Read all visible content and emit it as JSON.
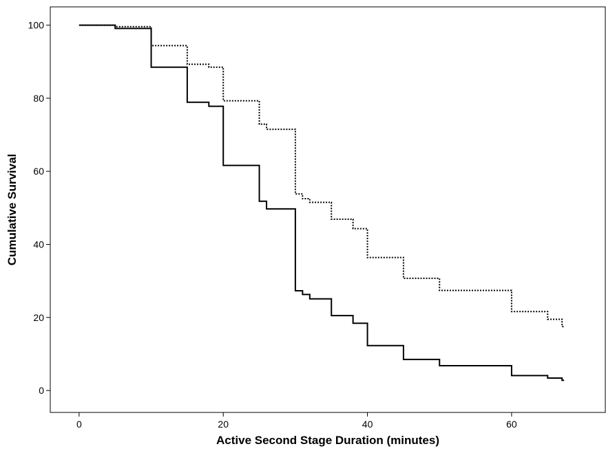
{
  "chart_data": {
    "type": "line",
    "title": "",
    "xlabel": "Active Second Stage Duration (minutes)",
    "ylabel": "Cumulative Survival",
    "xlim": [
      -4,
      73
    ],
    "ylim": [
      -6,
      105
    ],
    "xticks": [
      0,
      20,
      40,
      60
    ],
    "yticks": [
      0,
      20,
      40,
      60,
      80,
      100
    ],
    "xtick_labels": [
      "0",
      "20",
      "40",
      "60"
    ],
    "ytick_labels": [
      "0",
      "20",
      "40",
      "60",
      "80",
      "100"
    ],
    "grid": false,
    "legend": "none",
    "step": true,
    "series": [
      {
        "style": "solid",
        "color": "#000000",
        "x": [
          0,
          5,
          10,
          15,
          18,
          20,
          25,
          26,
          30,
          31,
          32,
          35,
          38,
          40,
          45,
          50,
          60,
          65,
          67
        ],
        "y": [
          100,
          99.1,
          88.5,
          78.9,
          77.8,
          61.6,
          51.8,
          49.7,
          27.3,
          26.3,
          25.1,
          20.5,
          18.4,
          12.3,
          8.5,
          6.8,
          4.1,
          3.4,
          2.8
        ]
      },
      {
        "style": "dotted",
        "color": "#000000",
        "x": [
          0,
          5,
          10,
          15,
          18,
          20,
          25,
          26,
          30,
          31,
          32,
          35,
          38,
          40,
          45,
          50,
          60,
          65,
          67
        ],
        "y": [
          100,
          99.6,
          94.4,
          89.3,
          88.5,
          79.3,
          72.9,
          71.5,
          53.8,
          52.5,
          51.5,
          46.9,
          44.3,
          36.4,
          30.7,
          27.4,
          21.6,
          19.5,
          17.5
        ]
      }
    ]
  }
}
